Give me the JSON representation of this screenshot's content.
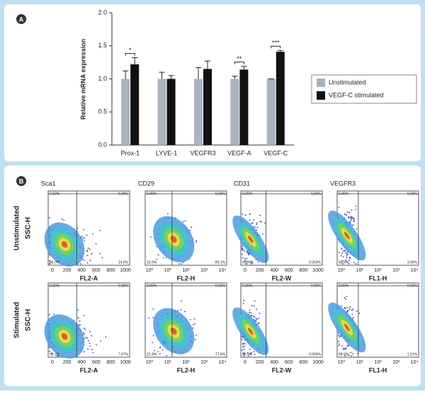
{
  "panel_labels": [
    "A",
    "B"
  ],
  "chart_data": {
    "type": "bar",
    "y_label": "Relative mRNA expression",
    "categories": [
      "Prox-1",
      "LYVE-1",
      "VEGFR3",
      "VEGF-A",
      "VEGF-C"
    ],
    "series": [
      {
        "name": "Unstimulated",
        "color": "#a8b4c0",
        "values": [
          1.0,
          1.0,
          1.0,
          1.0,
          1.0
        ],
        "errors": [
          0.12,
          0.1,
          0.17,
          0.04,
          0
        ]
      },
      {
        "name": "VEGF-C stimulated",
        "color": "#111111",
        "values": [
          1.22,
          1.0,
          1.15,
          1.14,
          1.41
        ],
        "errors": [
          0.1,
          0.05,
          0.12,
          0.05,
          0.02
        ]
      }
    ],
    "annotations": [
      "*",
      null,
      null,
      "**",
      "***"
    ],
    "ylim": [
      0,
      2.0
    ],
    "yticks": [
      {
        "value": 0,
        "label": "0.0"
      },
      0.5,
      {
        "value": 1,
        "label": "1.0"
      },
      1.5,
      {
        "value": 2,
        "label": "2.0"
      }
    ],
    "legend": "right"
  },
  "flow_cytometry": {
    "y_label": "SSC-H",
    "columns": [
      {
        "title": "Sca1",
        "x_label": "FL2-A",
        "x_ticks": [
          "0",
          "200",
          "400",
          "600",
          "800",
          "1000"
        ]
      },
      {
        "title": "CD29",
        "x_label": "FL2-H",
        "x_ticks": [
          "10⁰",
          "10¹",
          "10²",
          "10³",
          "10⁴"
        ]
      },
      {
        "title": "CD31",
        "x_label": "FL2-W",
        "x_ticks": [
          "0",
          "200",
          "400",
          "600",
          "800",
          "1000"
        ]
      },
      {
        "title": "VEGFR3",
        "x_label": "FL1-H",
        "x_ticks": [
          "10⁰",
          "10¹",
          "10²",
          "10³",
          "10⁴"
        ]
      }
    ],
    "rows": [
      {
        "label": "Unstimulated",
        "quadrants": [
          [
            "0.00%",
            "0.00%",
            "86.0%",
            "14.0%"
          ],
          [
            "0.00%",
            "0.00%",
            "10.9%",
            "89.1%"
          ],
          [
            "0.00%",
            "0.00%",
            "99.9%",
            "0.053%"
          ],
          [
            "0.00%",
            "0.00%",
            "96.9%",
            "3.05%"
          ]
        ]
      },
      {
        "label": "Stimulated",
        "quadrants": [
          [
            "0.00%",
            "0.00%",
            "92.3%",
            "7.67%"
          ],
          [
            "0.00%",
            "0.00%",
            "22.4%",
            "77.6%"
          ],
          [
            "0.00%",
            "0.00%",
            "99.9%",
            "0.066%"
          ],
          [
            "0.00%",
            "0.00%",
            "98.5%",
            "1.51%"
          ]
        ]
      }
    ]
  }
}
